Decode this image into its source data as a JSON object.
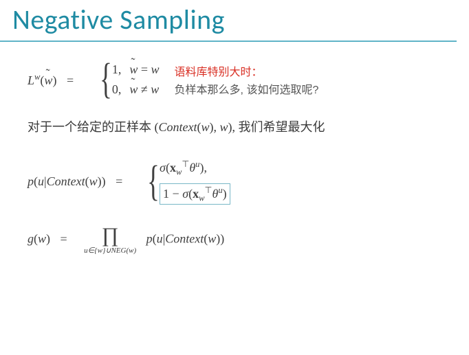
{
  "colors": {
    "title": "#1f8ba3",
    "underline": "#5fb4c7",
    "annot_red": "#d93025",
    "text": "#404040",
    "box_border": "#78b7c7",
    "background": "#ffffff"
  },
  "title": "Negative Sampling",
  "eq1": {
    "lhs_func": "L",
    "lhs_sup": "w",
    "lhs_arg": "w",
    "equals": "=",
    "case1_val": "1,",
    "case1_cond_left": "w",
    "case1_rel": "=",
    "case1_cond_right": "w",
    "case2_val": "0,",
    "case2_cond_left": "w",
    "case2_rel": "≠",
    "case2_cond_right": "w"
  },
  "annot": {
    "line1": "语料库特别大时：",
    "line2": "负样本那么多, 该如何选取呢?"
  },
  "para": {
    "pre": "对于一个给定的正样本 ",
    "tuple_open": "(",
    "ctx": "Context",
    "arg_open": "(",
    "arg": "w",
    "arg_close": ")",
    "comma": ", ",
    "w": "w",
    "tuple_close": ")",
    "post": ", 我们希望最大化"
  },
  "eq2": {
    "lhs_p": "p",
    "lhs_open": "(",
    "lhs_u": "u",
    "lhs_bar": "|",
    "lhs_ctx": "Context",
    "lhs_argopen": "(",
    "lhs_w": "w",
    "lhs_argclose": ")",
    "lhs_close": ")",
    "equals": "=",
    "case1_sigma": "σ",
    "case1_open": "(",
    "case1_x": "x",
    "case1_xsub": "w",
    "case1_T": "⊤",
    "case1_theta": "θ",
    "case1_thetasup": "u",
    "case1_close": "),",
    "case2_one": "1",
    "case2_minus": " − ",
    "case2_sigma": "σ",
    "case2_open": "(",
    "case2_x": "x",
    "case2_xsub": "w",
    "case2_T": "⊤",
    "case2_theta": "θ",
    "case2_thetasup": "u",
    "case2_close": ")"
  },
  "eq3": {
    "g": "g",
    "gopen": "(",
    "gw": "w",
    "gclose": ")",
    "equals": "=",
    "prod_sub": "u∈{w}∪NEG(w)",
    "p": "p",
    "popen": "(",
    "u": "u",
    "bar": "|",
    "ctx": "Context",
    "argopen": "(",
    "w": "w",
    "argclose": ")",
    "pclose": ")"
  }
}
